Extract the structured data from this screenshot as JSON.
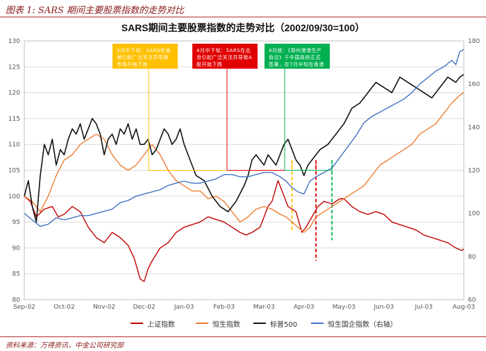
{
  "figure_caption": "图表 1: SARS 期间主要股票指数的走势对比",
  "source": "资料来源：万得资讯，中金公司研究部",
  "colors": {
    "brand_red": "#8b1a1a",
    "grid": "#d9d9d9"
  },
  "chart_data": {
    "type": "line",
    "title": "SARS期间主要股票指数的走势对比（2002/09/30=100）",
    "x_tick_labels": [
      "Sep-02",
      "Oct-02",
      "Nov-02",
      "Dec-02",
      "Jan-03",
      "Feb-03",
      "Mar-03",
      "Apr-03",
      "May-03",
      "Jun-03",
      "Jul-03",
      "Aug-03"
    ],
    "y_left": {
      "min": 80,
      "max": 130,
      "ticks": [
        80,
        85,
        90,
        95,
        100,
        105,
        110,
        115,
        120,
        125,
        130
      ]
    },
    "y_right": {
      "min": 60,
      "max": 180,
      "ticks": [
        60,
        80,
        100,
        120,
        140,
        160,
        180
      ]
    },
    "grid": true,
    "legend_position": "bottom",
    "series": [
      {
        "name": "上证指数",
        "color": "#c00000",
        "axis": "left",
        "x": [
          0,
          0.15,
          0.3,
          0.5,
          0.7,
          0.85,
          1.0,
          1.2,
          1.4,
          1.6,
          1.8,
          2.0,
          2.2,
          2.4,
          2.6,
          2.75,
          2.9,
          3.0,
          3.1,
          3.2,
          3.4,
          3.6,
          3.8,
          4.0,
          4.2,
          4.4,
          4.6,
          4.8,
          5.0,
          5.2,
          5.4,
          5.55,
          5.7,
          5.9,
          6.0,
          6.1,
          6.2,
          6.35,
          6.45,
          6.6,
          6.8,
          6.95,
          7.05,
          7.2,
          7.35,
          7.5,
          7.7,
          7.9,
          8.0,
          8.2,
          8.4,
          8.6,
          8.8,
          9.0,
          9.2,
          9.4,
          9.6,
          9.8,
          10.0,
          10.2,
          10.4,
          10.6,
          10.8,
          10.95,
          11.0
        ],
        "y": [
          100,
          99,
          96,
          97.5,
          98,
          96,
          96.5,
          98,
          97,
          94,
          92,
          91,
          93,
          92,
          90.5,
          88,
          84,
          83.5,
          86,
          87.5,
          90,
          91,
          93,
          94,
          94.5,
          95,
          96,
          95.5,
          95,
          94,
          93,
          92.5,
          93,
          94,
          96,
          98,
          99,
          103,
          101,
          98,
          97,
          93,
          94,
          96,
          98,
          99,
          98.5,
          99.5,
          99.5,
          98,
          97,
          96.5,
          97,
          96.5,
          95,
          94.5,
          94,
          93.5,
          92.5,
          92,
          91.5,
          91,
          90,
          89.5,
          89.8
        ]
      },
      {
        "name": "恒生指数",
        "color": "#ed7d31",
        "axis": "left",
        "x": [
          0,
          0.2,
          0.4,
          0.6,
          0.8,
          1.0,
          1.2,
          1.4,
          1.6,
          1.8,
          2.0,
          2.2,
          2.4,
          2.6,
          2.8,
          3.0,
          3.2,
          3.4,
          3.6,
          3.8,
          4.0,
          4.2,
          4.4,
          4.6,
          4.8,
          5.0,
          5.2,
          5.4,
          5.6,
          5.8,
          6.0,
          6.2,
          6.4,
          6.55,
          6.7,
          6.85,
          7.0,
          7.15,
          7.3,
          7.5,
          7.7,
          7.9,
          8.1,
          8.3,
          8.5,
          8.7,
          8.9,
          9.1,
          9.3,
          9.5,
          9.7,
          9.9,
          10.1,
          10.3,
          10.5,
          10.7,
          10.9,
          11.0
        ],
        "y": [
          100,
          99,
          97,
          100,
          104,
          107,
          108,
          110,
          111,
          112,
          111,
          108,
          106,
          105,
          106,
          108,
          110,
          108,
          105,
          103,
          102,
          101,
          101,
          99.5,
          100,
          99,
          97,
          95,
          96,
          97.5,
          98,
          97.5,
          96.5,
          96,
          95,
          94,
          93,
          94,
          96,
          97,
          98,
          99,
          100,
          101,
          102,
          104,
          106,
          107,
          108,
          109,
          110,
          112,
          113,
          114,
          116,
          118,
          119.5,
          120
        ]
      },
      {
        "name": "标普500",
        "color": "#111111",
        "axis": "left",
        "x": [
          0,
          0.1,
          0.2,
          0.3,
          0.4,
          0.5,
          0.6,
          0.7,
          0.8,
          0.9,
          1.0,
          1.1,
          1.2,
          1.3,
          1.4,
          1.5,
          1.6,
          1.7,
          1.8,
          1.9,
          2.0,
          2.1,
          2.2,
          2.3,
          2.4,
          2.5,
          2.6,
          2.7,
          2.8,
          2.9,
          3.0,
          3.1,
          3.2,
          3.3,
          3.4,
          3.5,
          3.6,
          3.7,
          3.8,
          3.9,
          4.0,
          4.15,
          4.3,
          4.5,
          4.7,
          4.9,
          5.1,
          5.3,
          5.5,
          5.6,
          5.7,
          5.8,
          5.9,
          6.0,
          6.1,
          6.2,
          6.3,
          6.4,
          6.5,
          6.6,
          6.7,
          6.8,
          6.9,
          7.0,
          7.1,
          7.2,
          7.4,
          7.6,
          7.8,
          8.0,
          8.2,
          8.4,
          8.6,
          8.8,
          9.0,
          9.2,
          9.4,
          9.6,
          9.8,
          10.0,
          10.2,
          10.4,
          10.6,
          10.8,
          10.9,
          11.0
        ],
        "y": [
          100,
          103,
          98,
          95,
          104,
          110,
          108,
          111,
          106,
          109,
          108,
          111,
          113,
          112,
          114,
          111,
          113,
          115,
          114,
          112,
          108,
          111,
          112,
          110,
          113,
          112,
          114,
          111,
          113,
          110,
          110,
          111,
          108,
          109,
          111,
          113,
          112,
          110,
          111,
          113,
          110,
          107,
          104,
          103,
          100,
          98,
          97,
          99,
          102,
          104,
          107,
          108,
          107,
          106,
          108,
          107,
          106,
          108,
          110,
          111,
          109,
          107,
          106,
          104,
          106,
          107,
          109,
          110,
          112,
          114,
          117,
          118,
          120,
          122,
          121,
          120,
          123,
          122,
          121,
          120,
          119,
          121,
          123,
          122,
          123,
          123.5
        ]
      },
      {
        "name": "恒生国企指数（右轴）",
        "color": "#4472c4",
        "axis": "right",
        "x": [
          0,
          0.2,
          0.4,
          0.6,
          0.8,
          1.0,
          1.2,
          1.4,
          1.6,
          1.8,
          2.0,
          2.2,
          2.4,
          2.6,
          2.8,
          3.0,
          3.2,
          3.4,
          3.6,
          3.8,
          4.0,
          4.2,
          4.4,
          4.6,
          4.8,
          5.0,
          5.2,
          5.4,
          5.6,
          5.8,
          6.0,
          6.2,
          6.4,
          6.55,
          6.7,
          6.85,
          7.0,
          7.15,
          7.3,
          7.5,
          7.7,
          7.9,
          8.1,
          8.3,
          8.5,
          8.7,
          8.9,
          9.1,
          9.3,
          9.5,
          9.7,
          9.9,
          10.1,
          10.3,
          10.5,
          10.7,
          10.8,
          10.9,
          11.0
        ],
        "y": [
          100,
          97,
          94,
          95,
          98,
          97,
          98,
          99,
          99,
          100,
          101,
          102,
          105,
          106,
          108,
          109,
          110,
          111,
          113,
          114,
          115,
          114,
          114,
          115,
          116,
          118,
          118,
          117,
          117,
          118,
          119,
          119,
          117,
          115,
          112,
          110,
          109,
          115,
          117,
          119,
          121,
          126,
          131,
          136,
          142,
          145,
          147,
          149,
          151,
          153,
          156,
          160,
          163,
          166,
          168,
          171,
          169,
          175,
          176
        ]
      }
    ],
    "annotations": [
      {
        "text": "3月中下旬：SARS在香港引起广泛关注并导致市场开始下跌",
        "color": "#ffc000",
        "x": 6.7
      },
      {
        "text": "4月中下旬：SARS在北京引起广泛关注并导致A股开始下跌",
        "color": "#e00000",
        "x": 7.3
      },
      {
        "text": "4月底：《郑州港港生产协议》于中国政府正式签署，在7月中旬在香港市场转",
        "color": "#00b050",
        "x": 7.7
      }
    ]
  }
}
